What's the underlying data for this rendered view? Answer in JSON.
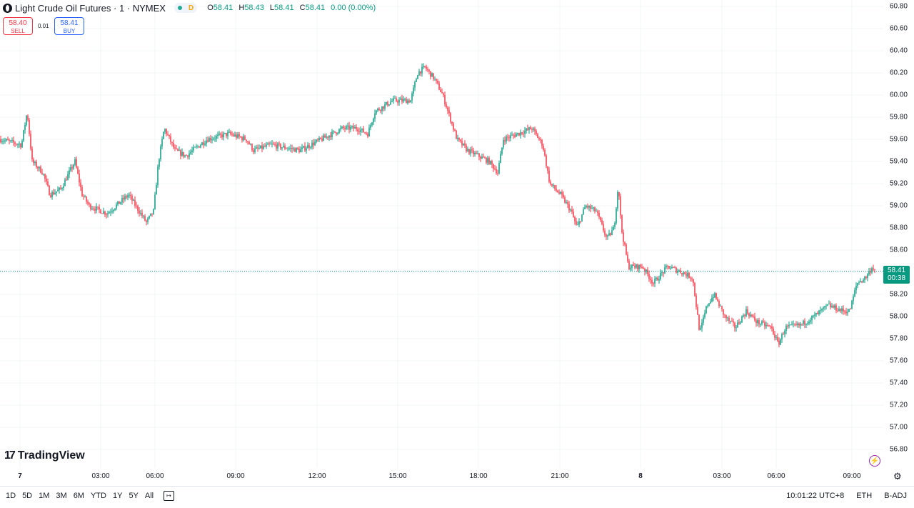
{
  "header": {
    "symbol_title": "Light Crude Oil Futures · 1 · NYMEX",
    "status_badge": "D",
    "ohlc": [
      {
        "k": "O",
        "v": "58.41"
      },
      {
        "k": "H",
        "v": "58.43"
      },
      {
        "k": "L",
        "v": "58.41"
      },
      {
        "k": "C",
        "v": "58.41"
      }
    ],
    "change": "0.00 (0.00%)"
  },
  "trade": {
    "sell_price": "58.40",
    "sell_label": "SELL",
    "spread": "0.01",
    "buy_price": "58.41",
    "buy_label": "BUY"
  },
  "y_axis": {
    "labels": [
      "60.80",
      "60.60",
      "60.40",
      "60.20",
      "60.00",
      "59.80",
      "59.60",
      "59.40",
      "59.20",
      "59.00",
      "58.80",
      "58.60",
      "58.40",
      "58.20",
      "58.00",
      "57.80",
      "57.60",
      "57.40",
      "57.20",
      "57.00",
      "56.80"
    ]
  },
  "price_tag": {
    "price": "58.41",
    "countdown": "00:38"
  },
  "x_axis": {
    "labels": [
      {
        "text": "7",
        "bold": true
      },
      {
        "text": "03:00"
      },
      {
        "text": "06:00"
      },
      {
        "text": "09:00"
      },
      {
        "text": "12:00"
      },
      {
        "text": "15:00"
      },
      {
        "text": "18:00"
      },
      {
        "text": "21:00"
      },
      {
        "text": "8",
        "bold": true
      },
      {
        "text": "03:00"
      },
      {
        "text": "06:00"
      },
      {
        "text": "09:00"
      }
    ]
  },
  "logo": {
    "text": "TradingView"
  },
  "bottom": {
    "ranges": [
      "1D",
      "5D",
      "1M",
      "3M",
      "6M",
      "YTD",
      "1Y",
      "5Y",
      "All"
    ],
    "time": "10:01:22 UTC+8",
    "session": "ETH",
    "adjust": "B-ADJ"
  },
  "colors": {
    "up": "#089981",
    "down": "#f23645",
    "accent": "#2962ff"
  },
  "chart_data": {
    "type": "candlestick",
    "price_range": [
      56.8,
      60.8
    ],
    "last_price": 58.41,
    "path": [
      [
        0,
        59.6
      ],
      [
        30,
        59.55
      ],
      [
        38,
        59.85
      ],
      [
        45,
        59.4
      ],
      [
        60,
        59.3
      ],
      [
        70,
        59.1
      ],
      [
        85,
        59.15
      ],
      [
        105,
        59.4
      ],
      [
        115,
        59.1
      ],
      [
        125,
        59.0
      ],
      [
        150,
        58.93
      ],
      [
        180,
        59.1
      ],
      [
        205,
        58.85
      ],
      [
        215,
        58.95
      ],
      [
        222,
        59.4
      ],
      [
        230,
        59.7
      ],
      [
        245,
        59.5
      ],
      [
        260,
        59.45
      ],
      [
        290,
        59.6
      ],
      [
        320,
        59.65
      ],
      [
        345,
        59.6
      ],
      [
        355,
        59.5
      ],
      [
        380,
        59.55
      ],
      [
        420,
        59.5
      ],
      [
        450,
        59.6
      ],
      [
        480,
        59.7
      ],
      [
        500,
        59.7
      ],
      [
        515,
        59.65
      ],
      [
        525,
        59.85
      ],
      [
        550,
        59.95
      ],
      [
        565,
        59.95
      ],
      [
        575,
        59.95
      ],
      [
        585,
        60.2
      ],
      [
        595,
        60.25
      ],
      [
        608,
        60.15
      ],
      [
        620,
        60.0
      ],
      [
        630,
        59.8
      ],
      [
        640,
        59.6
      ],
      [
        655,
        59.5
      ],
      [
        670,
        59.45
      ],
      [
        685,
        59.4
      ],
      [
        697,
        59.3
      ],
      [
        705,
        59.6
      ],
      [
        725,
        59.65
      ],
      [
        745,
        59.7
      ],
      [
        760,
        59.55
      ],
      [
        770,
        59.2
      ],
      [
        785,
        59.1
      ],
      [
        800,
        58.95
      ],
      [
        808,
        58.8
      ],
      [
        820,
        59.0
      ],
      [
        835,
        58.95
      ],
      [
        850,
        58.7
      ],
      [
        860,
        58.8
      ],
      [
        866,
        59.2
      ],
      [
        870,
        58.8
      ],
      [
        880,
        58.45
      ],
      [
        900,
        58.45
      ],
      [
        915,
        58.3
      ],
      [
        935,
        58.45
      ],
      [
        955,
        58.4
      ],
      [
        970,
        58.35
      ],
      [
        980,
        57.85
      ],
      [
        990,
        58.1
      ],
      [
        1000,
        58.2
      ],
      [
        1015,
        58.0
      ],
      [
        1030,
        57.9
      ],
      [
        1045,
        58.05
      ],
      [
        1060,
        57.95
      ],
      [
        1080,
        57.9
      ],
      [
        1090,
        57.75
      ],
      [
        1100,
        57.9
      ],
      [
        1120,
        57.92
      ],
      [
        1140,
        58.0
      ],
      [
        1160,
        58.1
      ],
      [
        1180,
        58.05
      ],
      [
        1190,
        58.05
      ],
      [
        1200,
        58.3
      ],
      [
        1212,
        58.35
      ],
      [
        1222,
        58.45
      ],
      [
        1226,
        58.41
      ]
    ]
  }
}
